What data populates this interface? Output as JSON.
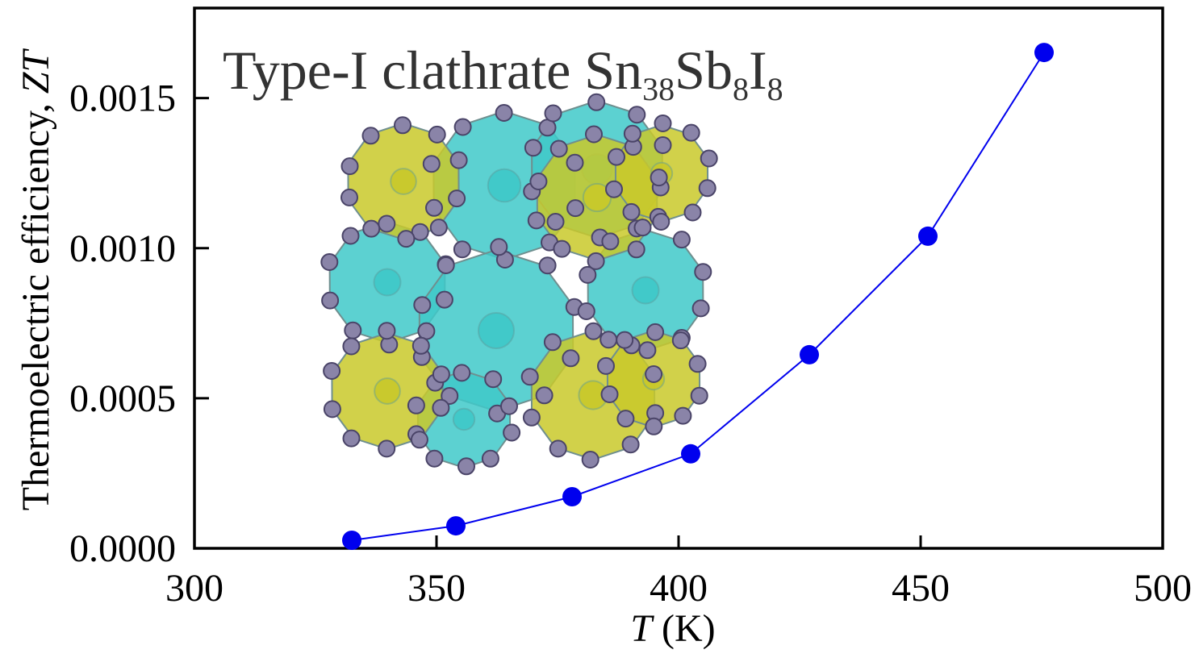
{
  "chart_data": {
    "type": "line",
    "title": {
      "text": "Type-I clathrate Sn",
      "sub1": "38",
      "mid1": "Sb",
      "sub2": "8",
      "mid2": "I",
      "sub3": "8"
    },
    "xlabel": {
      "italic": "T",
      "rest": " (K)"
    },
    "ylabel": {
      "rest": "Thermoelectric efficiency, ",
      "italic": "ZT"
    },
    "xlim": [
      300,
      500
    ],
    "ylim": [
      0.0,
      0.0018
    ],
    "xticks": [
      {
        "value": 300,
        "label": "300"
      },
      {
        "value": 350,
        "label": "350"
      },
      {
        "value": 400,
        "label": "400"
      },
      {
        "value": 450,
        "label": "450"
      },
      {
        "value": 500,
        "label": "500"
      }
    ],
    "yticks": [
      {
        "value": 0.0,
        "label": "0.0000"
      },
      {
        "value": 0.0005,
        "label": "0.0005"
      },
      {
        "value": 0.001,
        "label": "0.0010"
      },
      {
        "value": 0.0015,
        "label": "0.0015"
      }
    ],
    "grid": false,
    "legend": "none",
    "series": [
      {
        "color": "#0000ee",
        "marker": "circle",
        "x": [
          332.5,
          354,
          378,
          402.5,
          427,
          451.5,
          475.5
        ],
        "y": [
          2.7e-05,
          7.5e-05,
          0.000172,
          0.000315,
          0.000645,
          0.00104,
          0.001652
        ]
      }
    ],
    "inset": {
      "type": "crystal-structure-illustration",
      "colors": {
        "cage_large": "#3fc9c9",
        "cage_small": "#c9c92a",
        "atom": "#8a84a8"
      }
    }
  }
}
